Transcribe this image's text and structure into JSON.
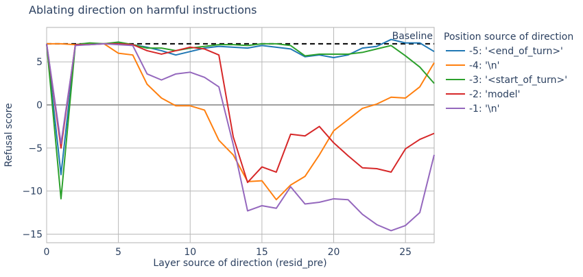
{
  "chart_data": {
    "type": "line",
    "title": "Ablating direction on harmful instructions",
    "xlabel": "Layer source of direction (resid_pre)",
    "ylabel": "Refusal score",
    "xlim": [
      0,
      27
    ],
    "ylim": [
      -16,
      9
    ],
    "xticks": [
      0,
      5,
      10,
      15,
      20,
      25
    ],
    "yticks": [
      -15,
      -10,
      -5,
      0,
      5
    ],
    "xtick_labels": [
      "0",
      "5",
      "10",
      "15",
      "20",
      "25"
    ],
    "ytick_labels": [
      "−15",
      "−10",
      "−5",
      "0",
      "5"
    ],
    "grid": true,
    "baseline": {
      "value": 7.1,
      "label": "Baseline",
      "color": "#000000",
      "style": "dashed"
    },
    "legend": {
      "title": "Position source of direction",
      "placement": "right"
    },
    "x": [
      0,
      1,
      2,
      3,
      4,
      5,
      6,
      7,
      8,
      9,
      10,
      11,
      12,
      13,
      14,
      15,
      16,
      17,
      18,
      19,
      20,
      21,
      22,
      23,
      24,
      25,
      26,
      27
    ],
    "series": [
      {
        "name": "-5: '<end_of_turn>'",
        "color": "#1f77b4",
        "values": [
          7.1,
          -8.1,
          7.0,
          7.1,
          7.1,
          7.2,
          7.0,
          6.7,
          6.3,
          5.8,
          6.2,
          6.6,
          6.8,
          6.7,
          6.6,
          6.9,
          6.7,
          6.5,
          5.6,
          5.8,
          5.5,
          5.8,
          6.6,
          6.8,
          7.6,
          7.2,
          7.2,
          6.2
        ]
      },
      {
        "name": "-4: '\\n'",
        "color": "#ff7f0e",
        "values": [
          7.1,
          7.1,
          7.0,
          7.1,
          7.1,
          6.0,
          5.8,
          2.4,
          0.8,
          -0.1,
          -0.1,
          -0.6,
          -4.1,
          -5.8,
          -8.9,
          -8.8,
          -11.0,
          -9.3,
          -8.3,
          -5.8,
          -3.0,
          -1.7,
          -0.4,
          0.1,
          0.9,
          0.8,
          2.1,
          4.9
        ]
      },
      {
        "name": "-3: '<start_of_turn>'",
        "color": "#2ca02c",
        "values": [
          7.1,
          -10.9,
          7.0,
          7.2,
          7.1,
          7.3,
          7.0,
          6.6,
          6.6,
          6.3,
          6.6,
          6.8,
          7.0,
          7.0,
          6.9,
          7.1,
          7.1,
          6.9,
          5.7,
          5.9,
          5.9,
          5.9,
          6.1,
          6.5,
          6.9,
          5.7,
          4.4,
          2.5
        ]
      },
      {
        "name": "-2: 'model'",
        "color": "#d62728",
        "values": [
          7.1,
          -5.0,
          7.0,
          7.0,
          7.1,
          7.1,
          7.0,
          6.3,
          5.9,
          6.3,
          6.7,
          6.5,
          5.8,
          -3.7,
          -9.0,
          -7.2,
          -7.8,
          -3.4,
          -3.6,
          -2.5,
          -4.4,
          -5.9,
          -7.3,
          -7.4,
          -7.8,
          -5.1,
          -4.0,
          -3.3
        ]
      },
      {
        "name": "-1: '\\n'",
        "color": "#9467bd",
        "values": [
          7.1,
          -4.5,
          6.9,
          7.0,
          7.1,
          7.0,
          6.9,
          3.6,
          2.9,
          3.6,
          3.8,
          3.2,
          2.1,
          -4.6,
          -12.3,
          -11.7,
          -12.0,
          -9.5,
          -11.5,
          -11.3,
          -10.9,
          -11.0,
          -12.7,
          -13.9,
          -14.6,
          -14.0,
          -12.5,
          -5.8
        ]
      }
    ]
  }
}
